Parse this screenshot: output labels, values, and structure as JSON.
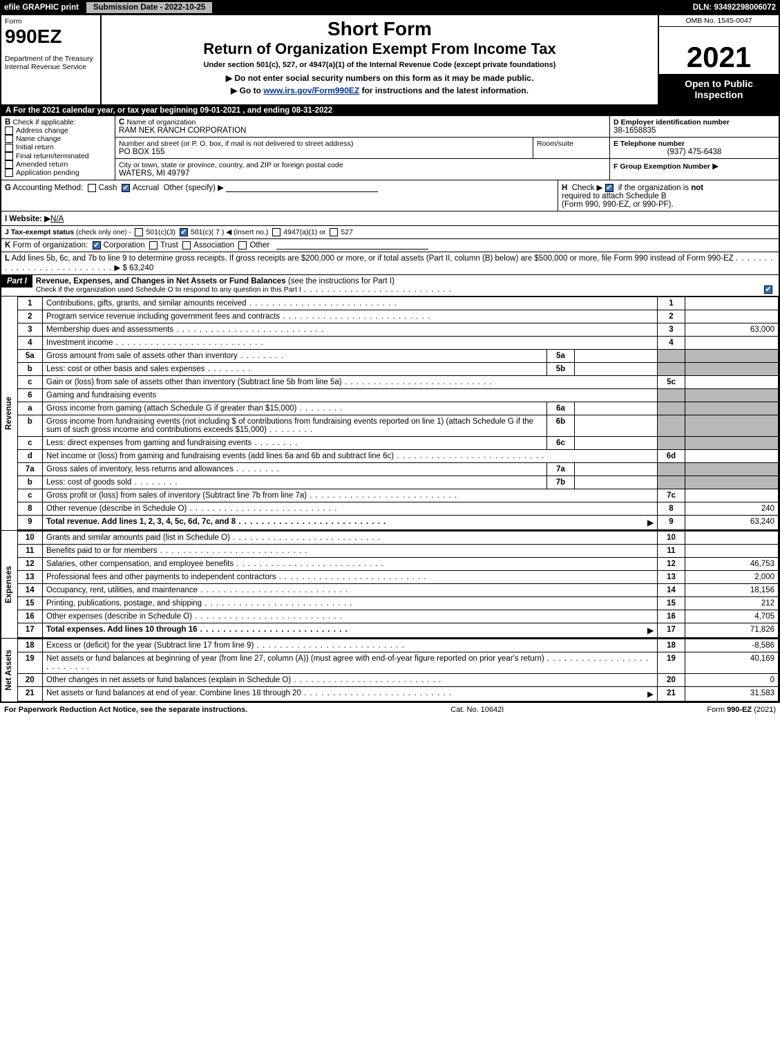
{
  "topbar": {
    "efile": "efile GRAPHIC print",
    "submission": "Submission Date - 2022-10-25",
    "dln_label": "DLN:",
    "dln": "93492298006072"
  },
  "header": {
    "form": "Form",
    "code": "990EZ",
    "dept1": "Department of the Treasury",
    "dept2": "Internal Revenue Service",
    "short": "Short Form",
    "title": "Return of Organization Exempt From Income Tax",
    "under": "Under section 501(c), 527, or 4947(a)(1) of the Internal Revenue Code (except private foundations)",
    "b1": "▶ Do not enter social security numbers on this form as it may be made public.",
    "b2_pre": "▶ Go to ",
    "b2_link": "www.irs.gov/Form990EZ",
    "b2_post": " for instructions and the latest information.",
    "omb": "OMB No. 1545-0047",
    "year": "2021",
    "open": "Open to Public Inspection"
  },
  "A": "A  For the 2021 calendar year, or tax year beginning 09-01-2021 , and ending 08-31-2022",
  "B": {
    "label": "B",
    "check": "Check if applicable:",
    "opts": [
      "Address change",
      "Name change",
      "Initial return",
      "Final return/terminated",
      "Amended return",
      "Application pending"
    ]
  },
  "C": {
    "label": "C",
    "name": "Name of organization",
    "value": "RAM NEK RANCH CORPORATION",
    "street_label": "Number and street (or P. O. box, if mail is not delivered to street address)",
    "street": "PO BOX 155",
    "room": "Room/suite",
    "city_label": "City or town, state or province, country, and ZIP or foreign postal code",
    "city": "WATERS, MI  49797"
  },
  "D": {
    "label": "D Employer identification number",
    "value": "38-1658835"
  },
  "E": {
    "label": "E Telephone number",
    "value": "(937) 475-6438"
  },
  "F": {
    "label": "F Group Exemption Number",
    "arrow": "▶"
  },
  "G": {
    "label": "G",
    "t": "Accounting Method:",
    "cash": "Cash",
    "accrual": "Accrual",
    "other": "Other (specify) ▶"
  },
  "H": {
    "label": "H",
    "t1": "Check ▶",
    "t2": "if the organization is ",
    "not": "not",
    "t3": "required to attach Schedule B",
    "t4": "(Form 990, 990-EZ, or 990-PF)."
  },
  "I": {
    "label": "I Website: ▶",
    "value": "N/A"
  },
  "J": {
    "label": "J Tax-exempt status",
    "sub": "(check only one) -",
    "o1": "501(c)(3)",
    "o2": "501(c)( 7 ) ◀ (insert no.)",
    "o3": "4947(a)(1) or",
    "o4": "527"
  },
  "K": {
    "label": "K",
    "t": "Form of organization:",
    "o": [
      "Corporation",
      "Trust",
      "Association",
      "Other"
    ]
  },
  "L": {
    "label": "L",
    "text": "Add lines 5b, 6c, and 7b to line 9 to determine gross receipts. If gross receipts are $200,000 or more, or if total assets (Part II, column (B) below) are $500,000 or more, file Form 990 instead of Form 990-EZ",
    "arrow": "▶ $",
    "amount": "63,240"
  },
  "part1": {
    "bar": "Part I",
    "title": "Revenue, Expenses, and Changes in Net Assets or Fund Balances ",
    "title2": "(see the instructions for Part I)",
    "sub": "Check if the organization used Schedule O to respond to any question in this Part I"
  },
  "sections": {
    "revenue": "Revenue",
    "expenses": "Expenses",
    "netassets": "Net Assets"
  },
  "lines": [
    {
      "n": "1",
      "d": "Contributions, gifts, grants, and similar amounts received",
      "r": "1",
      "a": ""
    },
    {
      "n": "2",
      "d": "Program service revenue including government fees and contracts",
      "r": "2",
      "a": ""
    },
    {
      "n": "3",
      "d": "Membership dues and assessments",
      "r": "3",
      "a": "63,000"
    },
    {
      "n": "4",
      "d": "Investment income",
      "r": "4",
      "a": ""
    },
    {
      "n": "5a",
      "d": "Gross amount from sale of assets other than inventory",
      "mid": "5a",
      "ma": ""
    },
    {
      "n": "b",
      "d": "Less: cost or other basis and sales expenses",
      "mid": "5b",
      "ma": ""
    },
    {
      "n": "c",
      "d": "Gain or (loss) from sale of assets other than inventory (Subtract line 5b from line 5a)",
      "r": "5c",
      "a": ""
    },
    {
      "n": "6",
      "d": "Gaming and fundraising events",
      "shadeRight": true
    },
    {
      "n": "a",
      "d": "Gross income from gaming (attach Schedule G if greater than $15,000)",
      "mid": "6a",
      "ma": "",
      "shadeRight": true
    },
    {
      "n": "b",
      "d": "Gross income from fundraising events (not including $                 of contributions from fundraising events reported on line 1) (attach Schedule G if the sum of such gross income and contributions exceeds $15,000)",
      "mid": "6b",
      "ma": "",
      "shadeRight": true
    },
    {
      "n": "c",
      "d": "Less: direct expenses from gaming and fundraising events",
      "mid": "6c",
      "ma": "",
      "shadeRight": true
    },
    {
      "n": "d",
      "d": "Net income or (loss) from gaming and fundraising events (add lines 6a and 6b and subtract line 6c)",
      "r": "6d",
      "a": ""
    },
    {
      "n": "7a",
      "d": "Gross sales of inventory, less returns and allowances",
      "mid": "7a",
      "ma": ""
    },
    {
      "n": "b",
      "d": "Less: cost of goods sold",
      "mid": "7b",
      "ma": ""
    },
    {
      "n": "c",
      "d": "Gross profit or (loss) from sales of inventory (Subtract line 7b from line 7a)",
      "r": "7c",
      "a": ""
    },
    {
      "n": "8",
      "d": "Other revenue (describe in Schedule O)",
      "r": "8",
      "a": "240"
    },
    {
      "n": "9",
      "d": "Total revenue. Add lines 1, 2, 3, 4, 5c, 6d, 7c, and 8",
      "r": "9",
      "a": "63,240",
      "bold": true,
      "arrow": true
    }
  ],
  "exp": [
    {
      "n": "10",
      "d": "Grants and similar amounts paid (list in Schedule O)",
      "r": "10",
      "a": ""
    },
    {
      "n": "11",
      "d": "Benefits paid to or for members",
      "r": "11",
      "a": ""
    },
    {
      "n": "12",
      "d": "Salaries, other compensation, and employee benefits",
      "r": "12",
      "a": "46,753"
    },
    {
      "n": "13",
      "d": "Professional fees and other payments to independent contractors",
      "r": "13",
      "a": "2,000"
    },
    {
      "n": "14",
      "d": "Occupancy, rent, utilities, and maintenance",
      "r": "14",
      "a": "18,156"
    },
    {
      "n": "15",
      "d": "Printing, publications, postage, and shipping",
      "r": "15",
      "a": "212"
    },
    {
      "n": "16",
      "d": "Other expenses (describe in Schedule O)",
      "r": "16",
      "a": "4,705"
    },
    {
      "n": "17",
      "d": "Total expenses. Add lines 10 through 16",
      "r": "17",
      "a": "71,826",
      "bold": true,
      "arrow": true
    }
  ],
  "net": [
    {
      "n": "18",
      "d": "Excess or (deficit) for the year (Subtract line 17 from line 9)",
      "r": "18",
      "a": "-8,586"
    },
    {
      "n": "19",
      "d": "Net assets or fund balances at beginning of year (from line 27, column (A)) (must agree with end-of-year figure reported on prior year's return)",
      "r": "19",
      "a": "40,169"
    },
    {
      "n": "20",
      "d": "Other changes in net assets or fund balances (explain in Schedule O)",
      "r": "20",
      "a": "0"
    },
    {
      "n": "21",
      "d": "Net assets or fund balances at end of year. Combine lines 18 through 20",
      "r": "21",
      "a": "31,583",
      "arrow": true
    }
  ],
  "footer": {
    "left": "For Paperwork Reduction Act Notice, see the separate instructions.",
    "mid": "Cat. No. 10642I",
    "right_a": "Form ",
    "right_b": "990-EZ",
    "right_c": " (2021)"
  }
}
